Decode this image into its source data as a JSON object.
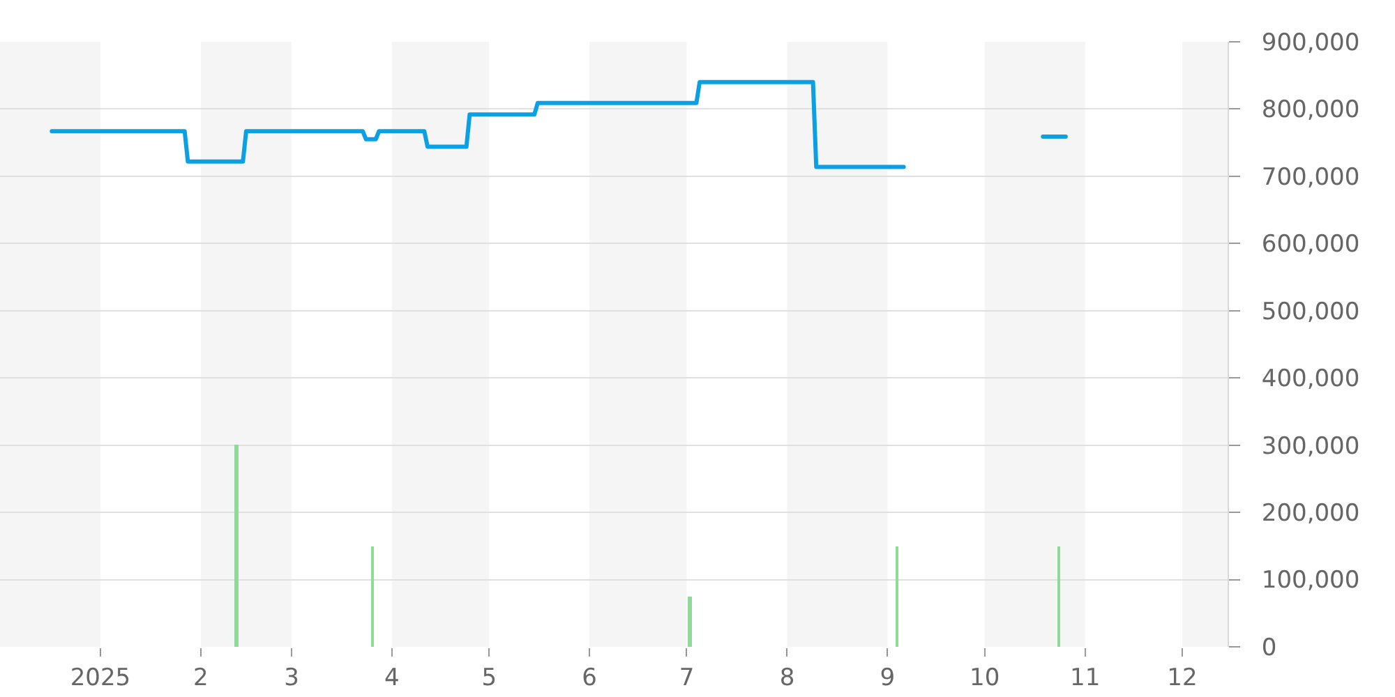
{
  "chart_data": {
    "type": "line",
    "xlim": [
      "2024-12-01",
      "2025-12-15"
    ],
    "xticks": [
      {
        "value": "2025-01-01",
        "label": "2025"
      },
      {
        "value": "2025-02-01",
        "label": "2"
      },
      {
        "value": "2025-03-01",
        "label": "3"
      },
      {
        "value": "2025-04-01",
        "label": "4"
      },
      {
        "value": "2025-05-01",
        "label": "5"
      },
      {
        "value": "2025-06-01",
        "label": "6"
      },
      {
        "value": "2025-07-01",
        "label": "7"
      },
      {
        "value": "2025-08-01",
        "label": "8"
      },
      {
        "value": "2025-09-01",
        "label": "9"
      },
      {
        "value": "2025-10-01",
        "label": "10"
      },
      {
        "value": "2025-11-01",
        "label": "11"
      },
      {
        "value": "2025-12-01",
        "label": "12"
      }
    ],
    "ylim": [
      0,
      900000
    ],
    "yticks": [
      0,
      {
        "value": 100000,
        "label": "100,000"
      },
      {
        "value": 200000,
        "label": "200,000"
      },
      {
        "value": 300000,
        "label": "300,000"
      },
      {
        "value": 400000,
        "label": "400,000"
      },
      {
        "value": 500000,
        "label": "500,000"
      },
      {
        "value": 600000,
        "label": "600,000"
      },
      {
        "value": 700000,
        "label": "700,000"
      },
      {
        "value": 800000,
        "label": "800,000"
      },
      {
        "value": 900000,
        "label": "900,000"
      }
    ],
    "grid": "y",
    "line_style": "solid",
    "bands": [
      {
        "axis": "x",
        "from": "2024-12-01",
        "to": "2025-01-01",
        "color": "#f5f5f5"
      },
      {
        "axis": "x",
        "from": "2025-02-01",
        "to": "2025-03-01",
        "color": "#f5f5f5"
      },
      {
        "axis": "x",
        "from": "2025-04-01",
        "to": "2025-05-01",
        "color": "#f5f5f5"
      },
      {
        "axis": "x",
        "from": "2025-06-01",
        "to": "2025-07-01",
        "color": "#f5f5f5"
      },
      {
        "axis": "x",
        "from": "2025-08-01",
        "to": "2025-09-01",
        "color": "#f5f5f5"
      },
      {
        "axis": "x",
        "from": "2025-10-01",
        "to": "2025-11-01",
        "color": "#f5f5f5"
      },
      {
        "axis": "x",
        "from": "2025-12-01",
        "to": "2025-12-15",
        "color": "#f5f5f5"
      }
    ],
    "series": [
      {
        "type": "bar",
        "color": "#8fd99a",
        "x": [
          "2025-02-12",
          "2025-03-26",
          "2025-07-02",
          "2025-09-04",
          "2025-10-24"
        ],
        "values": [
          300000,
          150000,
          75000,
          150000,
          150000
        ]
      },
      {
        "color": "#0b9fe3",
        "x": [
          "2024-12-17",
          "2025-01-27",
          "2025-01-28",
          "2025-02-14",
          "2025-02-15",
          "2025-03-23",
          "2025-03-24",
          "2025-03-27",
          "2025-03-28",
          "2025-04-11",
          "2025-04-12",
          "2025-04-24",
          "2025-04-25",
          "2025-05-15",
          "2025-05-16",
          "2025-07-04",
          "2025-07-05",
          "2025-08-09",
          "2025-08-10",
          "2025-09-06",
          "2025-09-07",
          "2025-10-19",
          "2025-10-26"
        ],
        "values": [
          767000,
          767000,
          722000,
          722000,
          767000,
          767000,
          755000,
          755000,
          767000,
          767000,
          744000,
          744000,
          792000,
          792000,
          809000,
          809000,
          840000,
          840000,
          714000,
          714000,
          null,
          759000,
          759000
        ]
      }
    ]
  }
}
